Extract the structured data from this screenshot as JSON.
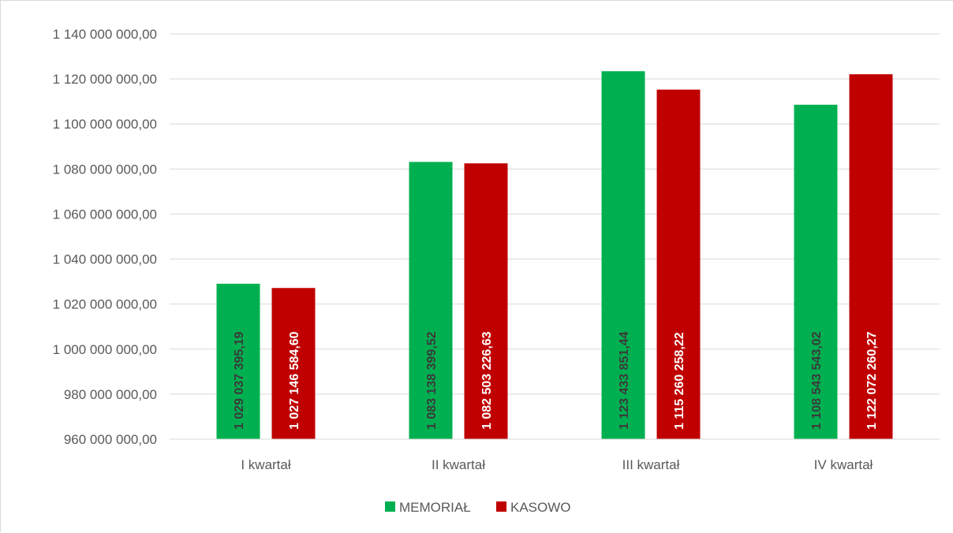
{
  "chart_data": {
    "type": "bar",
    "title": "",
    "xlabel": "",
    "ylabel": "",
    "categories": [
      "I kwartał",
      "II kwartał",
      "III kwartał",
      "IV kwartał"
    ],
    "series": [
      {
        "name": "MEMORIAŁ",
        "color": "#00b050",
        "label_color": "#3a3a3a",
        "values": [
          1029037395.19,
          1083138399.52,
          1123433851.44,
          1108543543.02
        ],
        "labels": [
          "1 029 037 395,19",
          "1 083 138 399,52",
          "1 123 433 851,44",
          "1 108 543 543,02"
        ]
      },
      {
        "name": "KASOWO",
        "color": "#c00000",
        "label_color": "#ffffff",
        "values": [
          1027146584.6,
          1082503226.63,
          1115260258.22,
          1122072260.27
        ],
        "labels": [
          "1 027 146 584,60",
          "1 082 503 226,63",
          "1 115 260 258,22",
          "1 122 072 260,27"
        ]
      }
    ],
    "ylim": [
      960000000,
      1140000000
    ],
    "yticks": [
      960000000,
      980000000,
      1000000000,
      1020000000,
      1040000000,
      1060000000,
      1080000000,
      1100000000,
      1120000000,
      1140000000
    ],
    "ytick_labels": [
      "960 000 000,00",
      "980 000 000,00",
      "1 000 000 000,00",
      "1 020 000 000,00",
      "1 040 000 000,00",
      "1 060 000 000,00",
      "1 080 000 000,00",
      "1 100 000 000,00",
      "1 120 000 000,00",
      "1 140 000 000,00"
    ],
    "grid": true,
    "gridline_color": "#d9d9d9",
    "legend": "bottom-center",
    "data_labels": "inside-vertical"
  }
}
